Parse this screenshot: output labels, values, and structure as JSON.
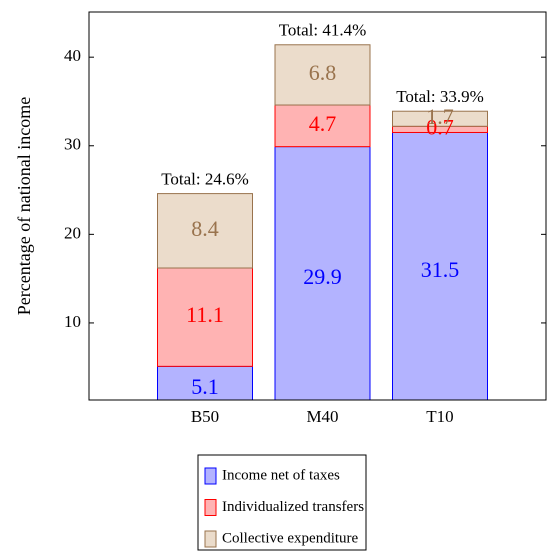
{
  "chart_data": {
    "type": "stacked_bar",
    "y_label": "Percentage of national income",
    "categories": [
      "B50",
      "M40",
      "T10"
    ],
    "series": [
      {
        "name": "Income net of taxes",
        "color": "#0000ff",
        "fill": "#b3b3ff",
        "values": [
          5.1,
          29.9,
          31.5
        ]
      },
      {
        "name": "Individualized transfers",
        "color": "#ff0000",
        "fill": "#ffb3b3",
        "values": [
          11.1,
          4.7,
          0.7
        ]
      },
      {
        "name": "Collective expenditure",
        "color": "#99734d",
        "fill": "#ebdccb",
        "values": [
          8.4,
          6.8,
          1.7
        ]
      }
    ],
    "totals": {
      "values": [
        24.6,
        41.4,
        33.9
      ],
      "value_labels": [
        "Total: 24.6%",
        "Total: 41.4%",
        "Total: 33.9%"
      ]
    },
    "ylim": [
      1.3,
      45.1
    ],
    "yticks": [
      10,
      20,
      30,
      40
    ],
    "legend": "bottom"
  }
}
